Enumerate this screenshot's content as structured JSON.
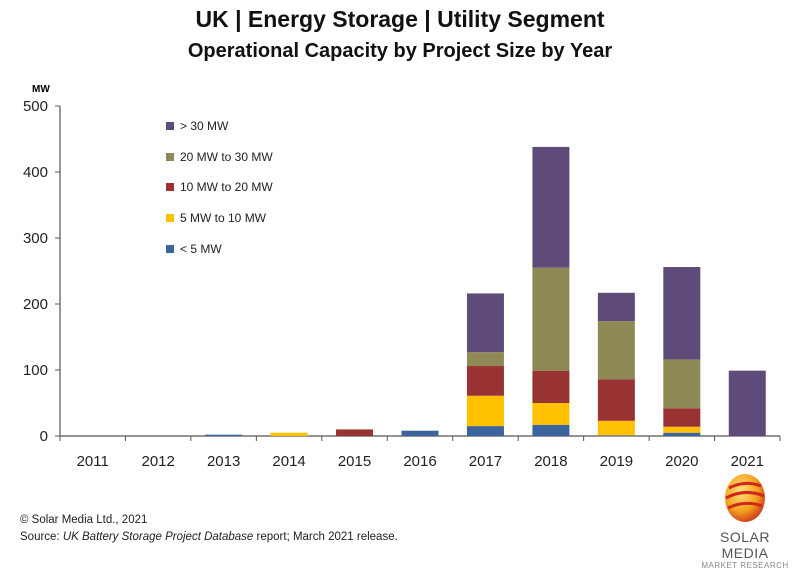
{
  "chart_data": {
    "type": "bar",
    "stacked": true,
    "title": "UK | Energy Storage | Utility Segment",
    "subtitle": "Operational Capacity by Project Size by Year",
    "ylabel": "MW",
    "xlabel": "",
    "ylim": [
      0,
      500
    ],
    "yticks": [
      0,
      100,
      200,
      300,
      400,
      500
    ],
    "grid": false,
    "legend_placement": "top-left",
    "categories": [
      "2011",
      "2012",
      "2013",
      "2014",
      "2015",
      "2016",
      "2017",
      "2018",
      "2019",
      "2020",
      "2021"
    ],
    "series": [
      {
        "name": "< 5 MW",
        "color": "#3b639c",
        "values": [
          0,
          0,
          2,
          0,
          0,
          8,
          15,
          17,
          1,
          5,
          0
        ]
      },
      {
        "name": "5 MW to 10 MW",
        "color": "#ffc000",
        "values": [
          0,
          0,
          0,
          5,
          0,
          0,
          46,
          33,
          22,
          9,
          0
        ]
      },
      {
        "name": "10 MW to 20 MW",
        "color": "#993333",
        "values": [
          0,
          0,
          0,
          0,
          10,
          0,
          45,
          49,
          63,
          28,
          0
        ]
      },
      {
        "name": "20 MW to 30 MW",
        "color": "#8f8a55",
        "values": [
          0,
          0,
          0,
          0,
          0,
          0,
          21,
          156,
          88,
          74,
          0
        ]
      },
      {
        "name": "> 30 MW",
        "color": "#5f4b7a",
        "values": [
          0,
          0,
          0,
          0,
          0,
          0,
          89,
          183,
          43,
          140,
          99
        ]
      }
    ]
  },
  "footer": {
    "copyright": "© Solar Media Ltd., 2021",
    "source_prefix": "Source: ",
    "source_title": "UK Battery Storage Project Database",
    "source_suffix": " report; March 2021 release."
  },
  "logo": {
    "name": "SOLAR MEDIA",
    "sub": "MARKET RESEARCH"
  }
}
